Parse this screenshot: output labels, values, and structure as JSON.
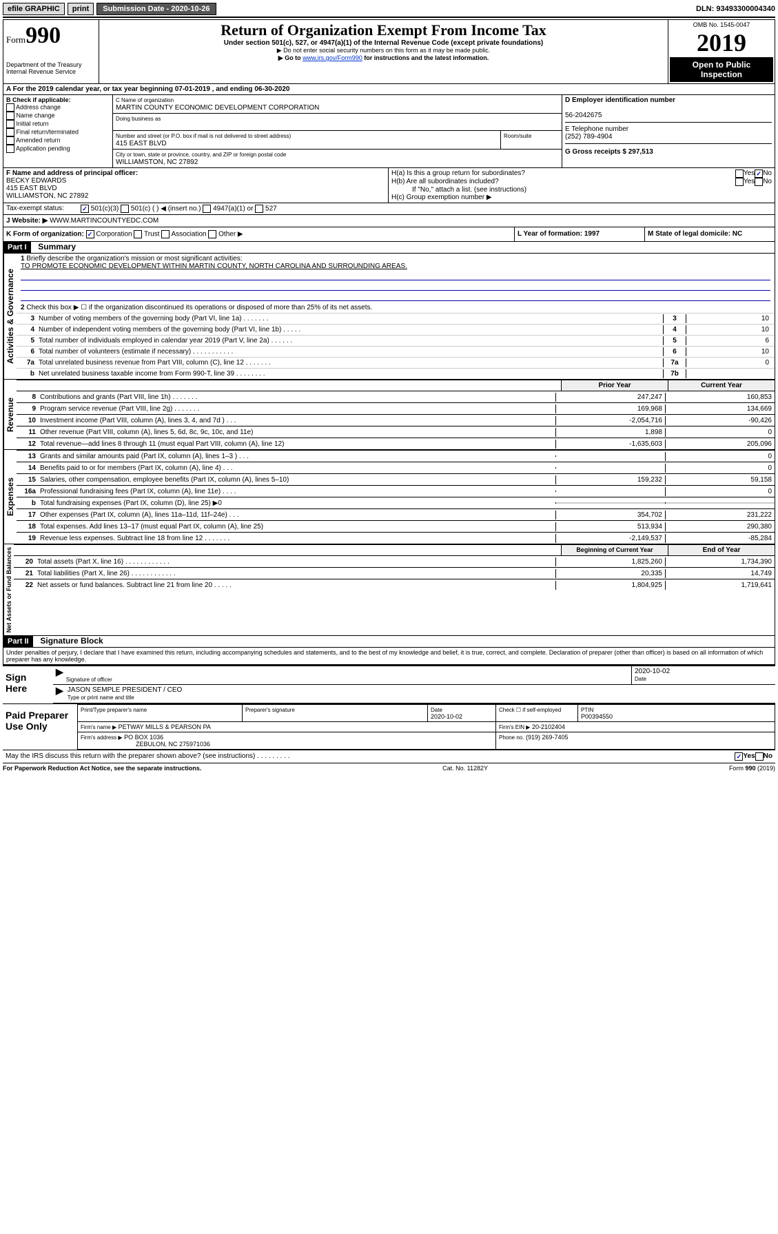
{
  "topbar": {
    "efile": "efile GRAPHIC",
    "print": "print",
    "sub_label": "Submission Date - 2020-10-26",
    "dln": "DLN: 93493300004340"
  },
  "header": {
    "form_label": "Form",
    "form_num": "990",
    "dept": "Department of the Treasury",
    "irs": "Internal Revenue Service",
    "title": "Return of Organization Exempt From Income Tax",
    "subtitle": "Under section 501(c), 527, or 4947(a)(1) of the Internal Revenue Code (except private foundations)",
    "note1": "▶ Do not enter social security numbers on this form as it may be made public.",
    "note2_pre": "▶ Go to ",
    "note2_link": "www.irs.gov/Form990",
    "note2_post": " for instructions and the latest information.",
    "omb": "OMB No. 1545-0047",
    "year": "2019",
    "open": "Open to Public Inspection"
  },
  "period": {
    "text": "A For the 2019 calendar year, or tax year beginning 07-01-2019    , and ending 06-30-2020"
  },
  "box_b": {
    "label": "B Check if applicable:",
    "items": [
      "Address change",
      "Name change",
      "Initial return",
      "Final return/terminated",
      "Amended return",
      "Application pending"
    ]
  },
  "box_c": {
    "name_label": "C Name of organization",
    "name": "MARTIN COUNTY ECONOMIC DEVELOPMENT CORPORATION",
    "dba_label": "Doing business as",
    "addr_label": "Number and street (or P.O. box if mail is not delivered to street address)",
    "room_label": "Room/suite",
    "addr": "415 EAST BLVD",
    "city_label": "City or town, state or province, country, and ZIP or foreign postal code",
    "city": "WILLIAMSTON, NC  27892"
  },
  "box_d": {
    "label": "D Employer identification number",
    "val": "56-2042675"
  },
  "box_e": {
    "label": "E Telephone number",
    "val": "(252) 789-4904"
  },
  "box_g": {
    "label": "G Gross receipts $ 297,513"
  },
  "box_f": {
    "label": "F  Name and address of principal officer:",
    "name": "BECKY EDWARDS",
    "addr1": "415 EAST BLVD",
    "addr2": "WILLIAMSTON, NC  27892"
  },
  "box_h": {
    "ha": "H(a)  Is this a group return for subordinates?",
    "hb": "H(b)  Are all subordinates included?",
    "hb_note": "If \"No,\" attach a list. (see instructions)",
    "hc": "H(c)  Group exemption number ▶"
  },
  "tax_status": {
    "label": "Tax-exempt status:",
    "opts": [
      "501(c)(3)",
      "501(c) (  ) ◀ (insert no.)",
      "4947(a)(1) or",
      "527"
    ]
  },
  "box_j": {
    "label": "J",
    "web": "Website: ▶",
    "val": "WWW.MARTINCOUNTYEDC.COM"
  },
  "box_k": {
    "label": "K Form of organization:",
    "opts": [
      "Corporation",
      "Trust",
      "Association",
      "Other ▶"
    ]
  },
  "box_l": {
    "label": "L Year of formation: 1997"
  },
  "box_m": {
    "label": "M State of legal domicile: NC"
  },
  "part1": {
    "header": "Part I",
    "title": "Summary",
    "q1": "Briefly describe the organization's mission or most significant activities:",
    "mission": "TO PROMOTE ECONOMIC DEVELOPMENT WITHIN MARTIN COUNTY, NORTH CAROLINA AND SURROUNDING AREAS.",
    "q2": "Check this box ▶ ☐  if the organization discontinued its operations or disposed of more than 25% of its net assets.",
    "lines_gov": [
      {
        "n": "3",
        "t": "Number of voting members of the governing body (Part VI, line 1a)   .    .    .    .    .    .    .",
        "box": "3",
        "v": "10"
      },
      {
        "n": "4",
        "t": "Number of independent voting members of the governing body (Part VI, line 1b)   .    .    .    .    .",
        "box": "4",
        "v": "10"
      },
      {
        "n": "5",
        "t": "Total number of individuals employed in calendar year 2019 (Part V, line 2a)   .    .    .    .    .    .",
        "box": "5",
        "v": "6"
      },
      {
        "n": "6",
        "t": "Total number of volunteers (estimate if necessary)   .    .    .    .    .    .    .    .    .    .    .",
        "box": "6",
        "v": "10"
      },
      {
        "n": "7a",
        "t": "Total unrelated business revenue from Part VIII, column (C), line 12   .    .    .    .    .    .    .",
        "box": "7a",
        "v": "0"
      },
      {
        "n": "b",
        "t": "Net unrelated business taxable income from Form 990-T, line 39   .    .    .    .    .    .    .    .",
        "box": "7b",
        "v": ""
      }
    ],
    "col_heads": {
      "py": "Prior Year",
      "cy": "Current Year"
    },
    "rev": [
      {
        "n": "8",
        "t": "Contributions and grants (Part VIII, line 1h)   .    .    .    .    .    .    .",
        "v1": "247,247",
        "v2": "160,853"
      },
      {
        "n": "9",
        "t": "Program service revenue (Part VIII, line 2g)   .    .    .    .    .    .    .",
        "v1": "169,968",
        "v2": "134,669"
      },
      {
        "n": "10",
        "t": "Investment income (Part VIII, column (A), lines 3, 4, and 7d )   .    .    .",
        "v1": "-2,054,716",
        "v2": "-90,426"
      },
      {
        "n": "11",
        "t": "Other revenue (Part VIII, column (A), lines 5, 6d, 8c, 9c, 10c, and 11e)",
        "v1": "1,898",
        "v2": "0"
      },
      {
        "n": "12",
        "t": "Total revenue—add lines 8 through 11 (must equal Part VIII, column (A), line 12)",
        "v1": "-1,635,603",
        "v2": "205,096"
      }
    ],
    "exp": [
      {
        "n": "13",
        "t": "Grants and similar amounts paid (Part IX, column (A), lines 1–3 )   .    .    .",
        "v1": "",
        "v2": "0"
      },
      {
        "n": "14",
        "t": "Benefits paid to or for members (Part IX, column (A), line 4)   .    .    .",
        "v1": "",
        "v2": "0"
      },
      {
        "n": "15",
        "t": "Salaries, other compensation, employee benefits (Part IX, column (A), lines 5–10)",
        "v1": "159,232",
        "v2": "59,158"
      },
      {
        "n": "16a",
        "t": "Professional fundraising fees (Part IX, column (A), line 11e)   .    .    .    .",
        "v1": "",
        "v2": "0"
      },
      {
        "n": "b",
        "t": "Total fundraising expenses (Part IX, column (D), line 25) ▶0",
        "v1": "",
        "v2": ""
      },
      {
        "n": "17",
        "t": "Other expenses (Part IX, column (A), lines 11a–11d, 11f–24e)   .    .    .",
        "v1": "354,702",
        "v2": "231,222"
      },
      {
        "n": "18",
        "t": "Total expenses. Add lines 13–17 (must equal Part IX, column (A), line 25)",
        "v1": "513,934",
        "v2": "290,380"
      },
      {
        "n": "19",
        "t": "Revenue less expenses. Subtract line 18 from line 12   .    .    .    .    .    .    .",
        "v1": "-2,149,537",
        "v2": "-85,284"
      }
    ],
    "na_heads": {
      "py": "Beginning of Current Year",
      "cy": "End of Year"
    },
    "na": [
      {
        "n": "20",
        "t": "Total assets (Part X, line 16)   .    .    .    .    .    .    .    .    .    .    .    .",
        "v1": "1,825,260",
        "v2": "1,734,390"
      },
      {
        "n": "21",
        "t": "Total liabilities (Part X, line 26)   .    .    .    .    .    .    .    .    .    .    .    .",
        "v1": "20,335",
        "v2": "14,749"
      },
      {
        "n": "22",
        "t": "Net assets or fund balances. Subtract line 21 from line 20   .    .    .    .    .",
        "v1": "1,804,925",
        "v2": "1,719,641"
      }
    ],
    "side_labels": {
      "gov": "Activities & Governance",
      "rev": "Revenue",
      "exp": "Expenses",
      "na": "Net Assets or Fund Balances"
    }
  },
  "part2": {
    "header": "Part II",
    "title": "Signature Block",
    "decl": "Under penalties of perjury, I declare that I have examined this return, including accompanying schedules and statements, and to the best of my knowledge and belief, it is true, correct, and complete. Declaration of preparer (other than officer) is based on all information of which preparer has any knowledge.",
    "sign_here": "Sign Here",
    "sig_officer": "Signature of officer",
    "date1": "2020-10-02",
    "date_lbl": "Date",
    "officer_name": "JASON SEMPLE PRESIDENT / CEO",
    "type_name": "Type or print name and title",
    "paid": "Paid Preparer Use Only",
    "prep_name_lbl": "Print/Type preparer's name",
    "prep_sig_lbl": "Preparer's signature",
    "date2_lbl": "Date",
    "date2": "2020-10-02",
    "check_lbl": "Check ☐ if self-employed",
    "ptin_lbl": "PTIN",
    "ptin": "P00394550",
    "firm_name_lbl": "Firm's name    ▶",
    "firm_name": "PETWAY MILLS & PEARSON PA",
    "firm_ein_lbl": "Firm's EIN ▶",
    "firm_ein": "20-2102404",
    "firm_addr_lbl": "Firm's address ▶",
    "firm_addr1": "PO BOX 1036",
    "firm_addr2": "ZEBULON, NC  275971036",
    "phone_lbl": "Phone no.",
    "phone": "(919) 269-7405",
    "discuss": "May the IRS discuss this return with the preparer shown above? (see instructions)    .    .    .    .    .    .    .    .    .",
    "yes": "Yes",
    "no": "No"
  },
  "footer": {
    "left": "For Paperwork Reduction Act Notice, see the separate instructions.",
    "mid": "Cat. No. 11282Y",
    "right": "Form 990 (2019)"
  }
}
